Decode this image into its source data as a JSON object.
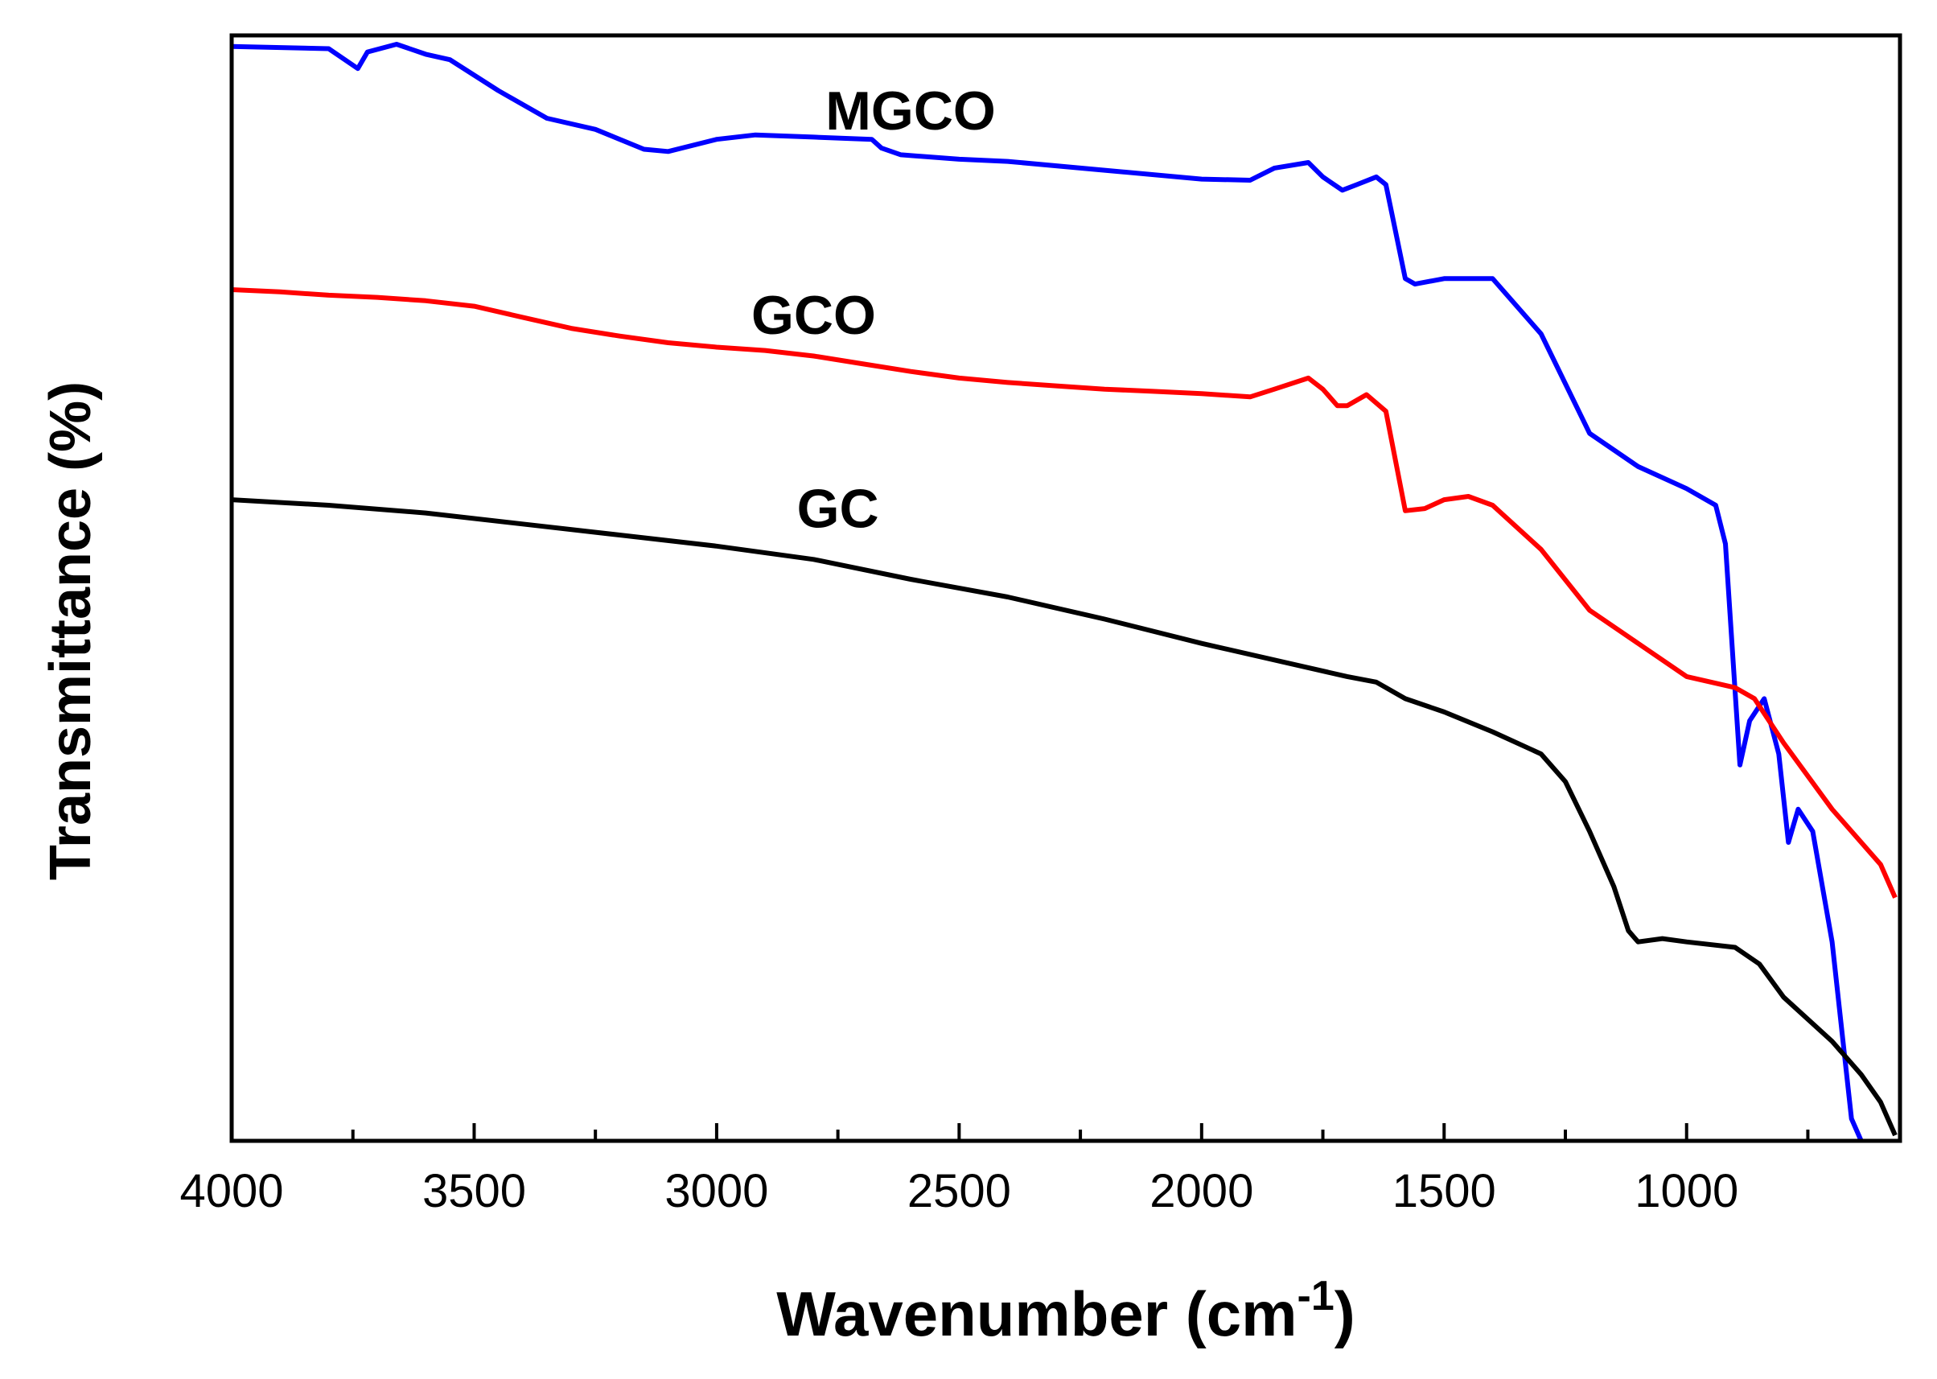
{
  "chart_data": {
    "type": "line",
    "title": "",
    "xlabel": "Wavenumber (cm",
    "xlabel_sup": "-1",
    "xlabel_close": ")",
    "ylabel": "Transmittance (%)",
    "xlim": [
      4000,
      560
    ],
    "ylim": [
      0,
      100
    ],
    "x_ticks": [
      4000,
      3500,
      3000,
      2500,
      2000,
      1500,
      1000
    ],
    "x_tick_labels": [
      "4000",
      "3500",
      "3000",
      "2500",
      "2000",
      "1500",
      "1000"
    ],
    "y_tick_labels": [],
    "grid": false,
    "legend": "inline labels",
    "series": [
      {
        "name": "MGCO",
        "color": "#0000ff",
        "label_at": [
          2600,
          91.5
        ],
        "points": [
          [
            4000,
            99
          ],
          [
            3800,
            98.8
          ],
          [
            3740,
            97
          ],
          [
            3720,
            98.5
          ],
          [
            3660,
            99.2
          ],
          [
            3600,
            98.3
          ],
          [
            3550,
            97.8
          ],
          [
            3450,
            95
          ],
          [
            3350,
            92.5
          ],
          [
            3250,
            91.5
          ],
          [
            3150,
            89.7
          ],
          [
            3100,
            89.5
          ],
          [
            3000,
            90.6
          ],
          [
            2920,
            91
          ],
          [
            2800,
            90.8
          ],
          [
            2680,
            90.6
          ],
          [
            2660,
            89.8
          ],
          [
            2620,
            89.2
          ],
          [
            2500,
            88.8
          ],
          [
            2400,
            88.6
          ],
          [
            2200,
            87.8
          ],
          [
            2000,
            87
          ],
          [
            1900,
            86.9
          ],
          [
            1850,
            88
          ],
          [
            1780,
            88.5
          ],
          [
            1750,
            87.2
          ],
          [
            1710,
            86
          ],
          [
            1680,
            86.5
          ],
          [
            1640,
            87.2
          ],
          [
            1620,
            86.5
          ],
          [
            1580,
            78
          ],
          [
            1560,
            77.5
          ],
          [
            1500,
            78
          ],
          [
            1400,
            78
          ],
          [
            1300,
            73
          ],
          [
            1200,
            64
          ],
          [
            1100,
            61
          ],
          [
            1000,
            59
          ],
          [
            940,
            57.5
          ],
          [
            920,
            54
          ],
          [
            890,
            34
          ],
          [
            870,
            38
          ],
          [
            840,
            40
          ],
          [
            810,
            35
          ],
          [
            790,
            27
          ],
          [
            770,
            30
          ],
          [
            740,
            28
          ],
          [
            700,
            18
          ],
          [
            660,
            2
          ],
          [
            640,
            0
          ]
        ]
      },
      {
        "name": "GCO",
        "color": "#ff0000",
        "label_at": [
          2800,
          73
        ],
        "points": [
          [
            4000,
            77
          ],
          [
            3900,
            76.8
          ],
          [
            3800,
            76.5
          ],
          [
            3700,
            76.3
          ],
          [
            3600,
            76
          ],
          [
            3500,
            75.5
          ],
          [
            3400,
            74.5
          ],
          [
            3300,
            73.5
          ],
          [
            3200,
            72.8
          ],
          [
            3100,
            72.2
          ],
          [
            3000,
            71.8
          ],
          [
            2900,
            71.5
          ],
          [
            2800,
            71
          ],
          [
            2700,
            70.3
          ],
          [
            2600,
            69.6
          ],
          [
            2500,
            69
          ],
          [
            2400,
            68.6
          ],
          [
            2300,
            68.3
          ],
          [
            2200,
            68
          ],
          [
            2100,
            67.8
          ],
          [
            2000,
            67.6
          ],
          [
            1900,
            67.3
          ],
          [
            1850,
            68
          ],
          [
            1780,
            69
          ],
          [
            1750,
            68
          ],
          [
            1720,
            66.5
          ],
          [
            1700,
            66.5
          ],
          [
            1660,
            67.5
          ],
          [
            1620,
            66
          ],
          [
            1580,
            57
          ],
          [
            1540,
            57.2
          ],
          [
            1500,
            58
          ],
          [
            1450,
            58.3
          ],
          [
            1400,
            57.5
          ],
          [
            1300,
            53.5
          ],
          [
            1200,
            48
          ],
          [
            1100,
            45
          ],
          [
            1000,
            42
          ],
          [
            900,
            41
          ],
          [
            860,
            40
          ],
          [
            800,
            36
          ],
          [
            700,
            30
          ],
          [
            600,
            25
          ],
          [
            570,
            22
          ]
        ]
      },
      {
        "name": "GC",
        "color": "#000000",
        "label_at": [
          2750,
          55.5
        ],
        "points": [
          [
            4000,
            58
          ],
          [
            3800,
            57.5
          ],
          [
            3600,
            56.8
          ],
          [
            3400,
            55.8
          ],
          [
            3200,
            54.8
          ],
          [
            3000,
            53.8
          ],
          [
            2800,
            52.6
          ],
          [
            2600,
            50.8
          ],
          [
            2400,
            49.2
          ],
          [
            2200,
            47.2
          ],
          [
            2000,
            45
          ],
          [
            1800,
            43
          ],
          [
            1700,
            42
          ],
          [
            1640,
            41.5
          ],
          [
            1580,
            40
          ],
          [
            1500,
            38.8
          ],
          [
            1400,
            37
          ],
          [
            1300,
            35
          ],
          [
            1250,
            32.5
          ],
          [
            1200,
            28
          ],
          [
            1150,
            23
          ],
          [
            1120,
            19
          ],
          [
            1100,
            18
          ],
          [
            1050,
            18.3
          ],
          [
            1000,
            18
          ],
          [
            900,
            17.5
          ],
          [
            850,
            16
          ],
          [
            800,
            13
          ],
          [
            700,
            9
          ],
          [
            640,
            6
          ],
          [
            600,
            3.5
          ],
          [
            570,
            0.5
          ]
        ]
      }
    ]
  }
}
